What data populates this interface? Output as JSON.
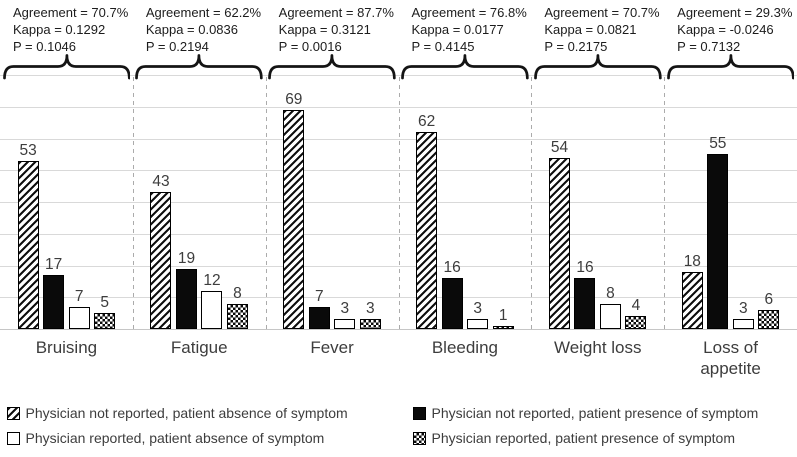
{
  "chart_data": {
    "type": "bar",
    "title": "",
    "xlabel": "",
    "ylabel": "",
    "categories": [
      "Bruising",
      "Fatigue",
      "Fever",
      "Bleeding",
      "Weight loss",
      "Loss of appetite"
    ],
    "series": [
      {
        "name": "Physician not reported, patient absence of symptom",
        "pattern": "diagonal-hatch",
        "values": [
          53,
          43,
          69,
          62,
          54,
          18
        ]
      },
      {
        "name": "Physician not reported, patient presence of symptom",
        "pattern": "solid-black",
        "values": [
          17,
          19,
          7,
          16,
          16,
          55
        ]
      },
      {
        "name": "Physician reported, patient absence of symptom",
        "pattern": "white-outline",
        "values": [
          7,
          12,
          3,
          3,
          8,
          3
        ]
      },
      {
        "name": "Physician reported, patient presence of symptom",
        "pattern": "checkerboard",
        "values": [
          5,
          8,
          3,
          1,
          4,
          6
        ]
      }
    ],
    "annotations": [
      {
        "category": "Bruising",
        "lines": [
          "Agreement = 70.7%",
          "Kappa = 0.1292",
          "P = 0.1046"
        ]
      },
      {
        "category": "Fatigue",
        "lines": [
          "Agreement = 62.2%",
          "Kappa = 0.0836",
          "P = 0.2194"
        ]
      },
      {
        "category": "Fever",
        "lines": [
          "Agreement = 87.7%",
          "Kappa = 0.3121",
          "P = 0.0016"
        ]
      },
      {
        "category": "Bleeding",
        "lines": [
          "Agreement = 76.8%",
          "Kappa = 0.0177",
          "P = 0.4145"
        ]
      },
      {
        "category": "Weight loss",
        "lines": [
          "Agreement = 70.7%",
          "Kappa = 0.0821",
          "P = 0.2175"
        ]
      },
      {
        "category": "Loss of appetite",
        "lines": [
          "Agreement = 29.3%",
          "Kappa = -0.0246",
          "P = 0.7132"
        ]
      }
    ],
    "ylim": [
      0,
      80
    ],
    "gridline_step": 10,
    "grid": true,
    "y_axis_tick_labels_visible": false,
    "bar_value_labels_visible": true,
    "legend_position": "bottom"
  },
  "legend": {
    "items": [
      {
        "label": "Physician not reported, patient absence of symptom",
        "pattern": "diagonal-hatch"
      },
      {
        "label": "Physician not reported, patient presence of symptom",
        "pattern": "solid-black"
      },
      {
        "label": "Physician reported, patient absence of symptom",
        "pattern": "white-outline"
      },
      {
        "label": "Physician reported, patient presence of symptom",
        "pattern": "checkerboard"
      }
    ]
  },
  "colors": {
    "bar_ink": "#0a0a0a",
    "text": "#3d3d3d",
    "annotation_text": "#1c1c1c",
    "gridline": "#d9d9d9",
    "separator": "#ababab",
    "background": "#ffffff"
  }
}
